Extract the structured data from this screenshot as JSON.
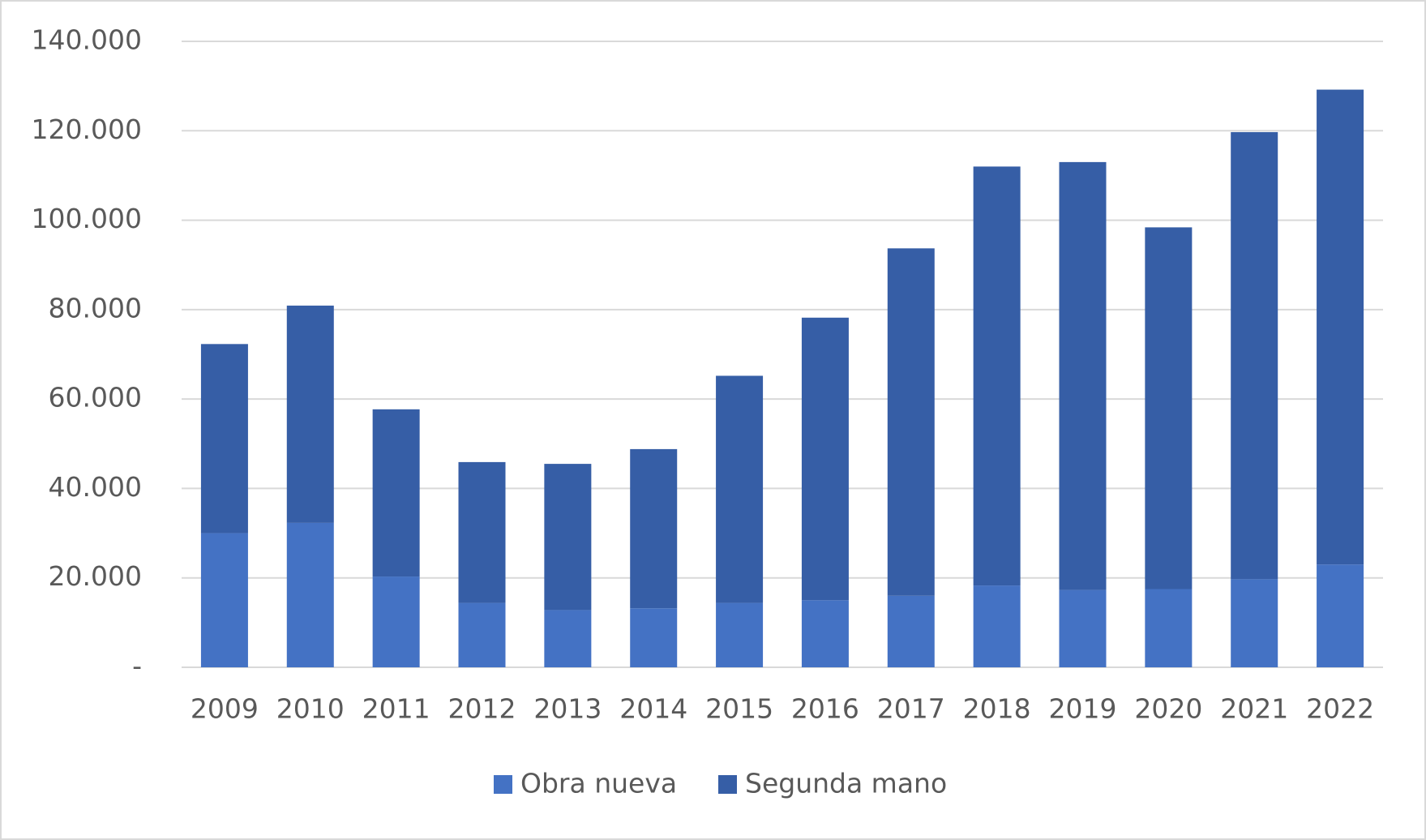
{
  "chart_data": {
    "type": "stacked_bar",
    "categories": [
      "2009",
      "2010",
      "2011",
      "2012",
      "2013",
      "2014",
      "2015",
      "2016",
      "2017",
      "2018",
      "2019",
      "2020",
      "2021",
      "2022"
    ],
    "series": [
      {
        "name": "Obra nueva",
        "color": "#4472c4",
        "values": [
          30000,
          32300,
          20300,
          14400,
          12800,
          13200,
          14400,
          15000,
          16000,
          18300,
          17300,
          17500,
          19700,
          23000
        ]
      },
      {
        "name": "Segunda mano",
        "color": "#365ea6",
        "values": [
          42300,
          48600,
          37400,
          31500,
          32700,
          35600,
          50800,
          63200,
          77700,
          93700,
          95700,
          80900,
          100000,
          106200
        ]
      }
    ],
    "ylim": [
      0,
      140000
    ],
    "yticks": [
      {
        "value": 0,
        "label": "-"
      },
      {
        "value": 20000,
        "label": "20.000"
      },
      {
        "value": 40000,
        "label": "40.000"
      },
      {
        "value": 60000,
        "label": "60.000"
      },
      {
        "value": 80000,
        "label": "80.000"
      },
      {
        "value": 100000,
        "label": "100.000"
      },
      {
        "value": 120000,
        "label": "120.000"
      },
      {
        "value": 140000,
        "label": "140.000"
      }
    ],
    "grid": true,
    "legend": "bottom"
  }
}
